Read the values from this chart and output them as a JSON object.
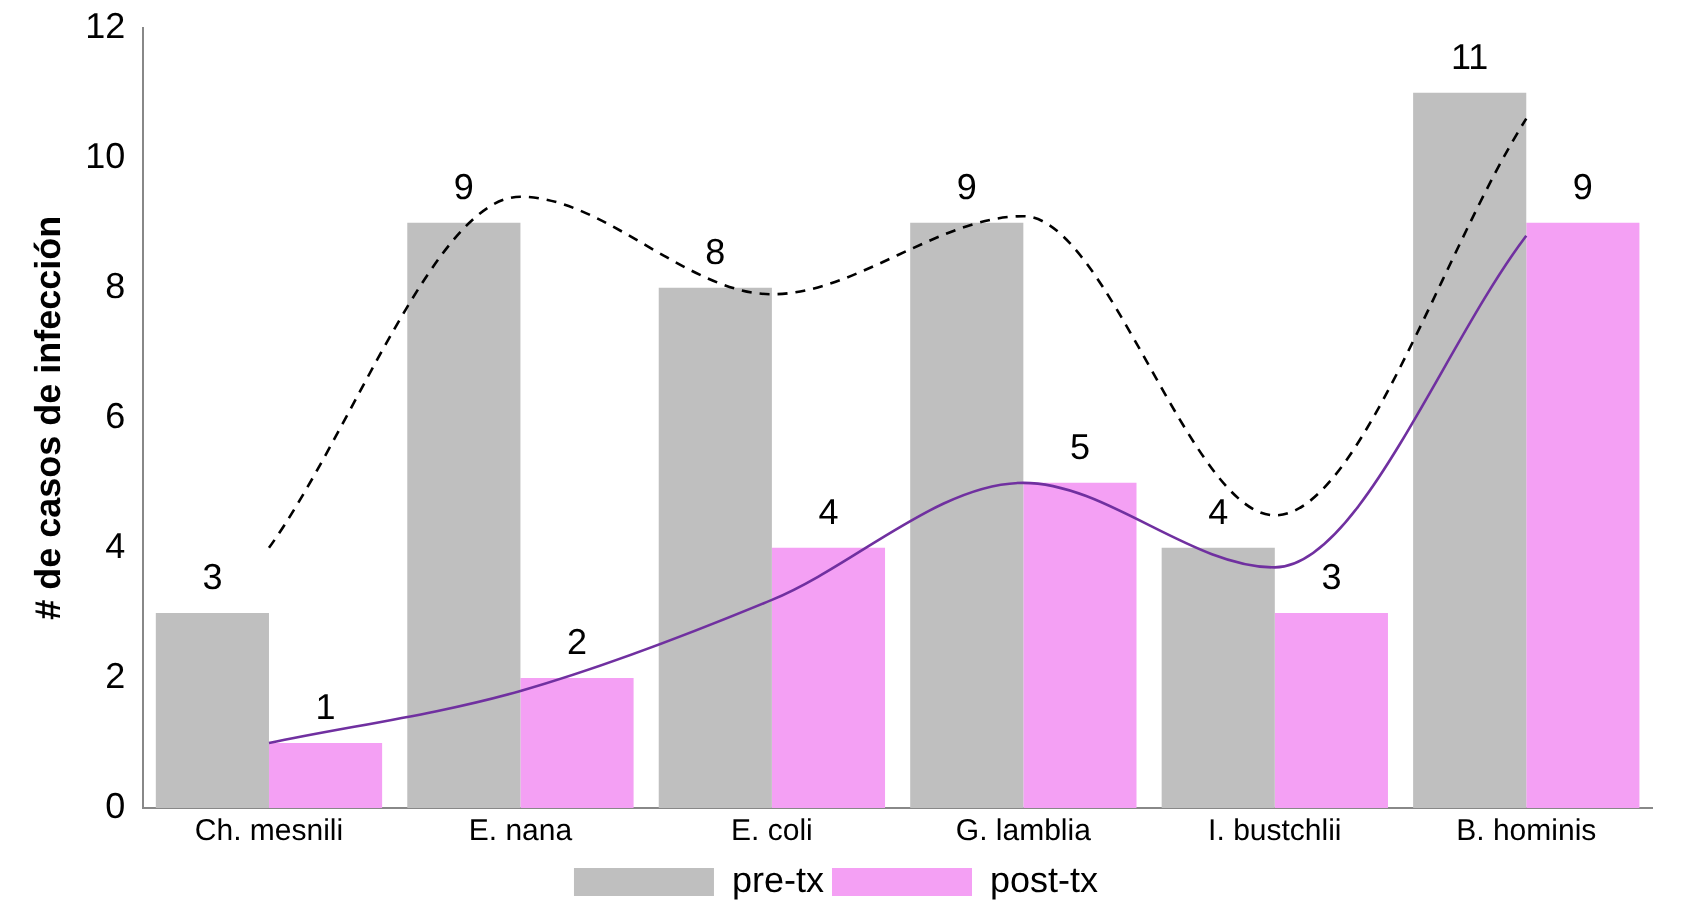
{
  "chart_data": {
    "type": "bar",
    "ylabel": "# de casos de infección",
    "categories": [
      "Ch. mesnili",
      "E. nana",
      "E. coli",
      "G. lamblia",
      "I. bustchlii",
      "B. hominis"
    ],
    "ylim": [
      0,
      12
    ],
    "yticks": [
      0,
      2,
      4,
      6,
      8,
      10,
      12
    ],
    "grid": false,
    "legend": "bottom",
    "series": [
      {
        "name": "pre-tx",
        "color": "#bfbfbf",
        "values": [
          3,
          9,
          8,
          9,
          4,
          11
        ],
        "value_labels": [
          "3",
          "9",
          "8",
          "9",
          "4",
          "11"
        ]
      },
      {
        "name": "post-tx",
        "color": "#f4a0f4",
        "values": [
          1,
          2,
          4,
          5,
          3,
          9
        ],
        "value_labels": [
          "1",
          "2",
          "4",
          "5",
          "3",
          "9"
        ]
      },
      {
        "type": "line",
        "color": "#000000",
        "line_style": "dashed",
        "marker": "none",
        "values": [
          4,
          9.4,
          7.9,
          9.1,
          4.5,
          10.6
        ]
      },
      {
        "type": "line",
        "color": "#7030a0",
        "line_style": "solid",
        "marker": "none",
        "values": [
          1,
          1.8,
          3.2,
          5,
          3.7,
          8.8
        ]
      }
    ]
  }
}
